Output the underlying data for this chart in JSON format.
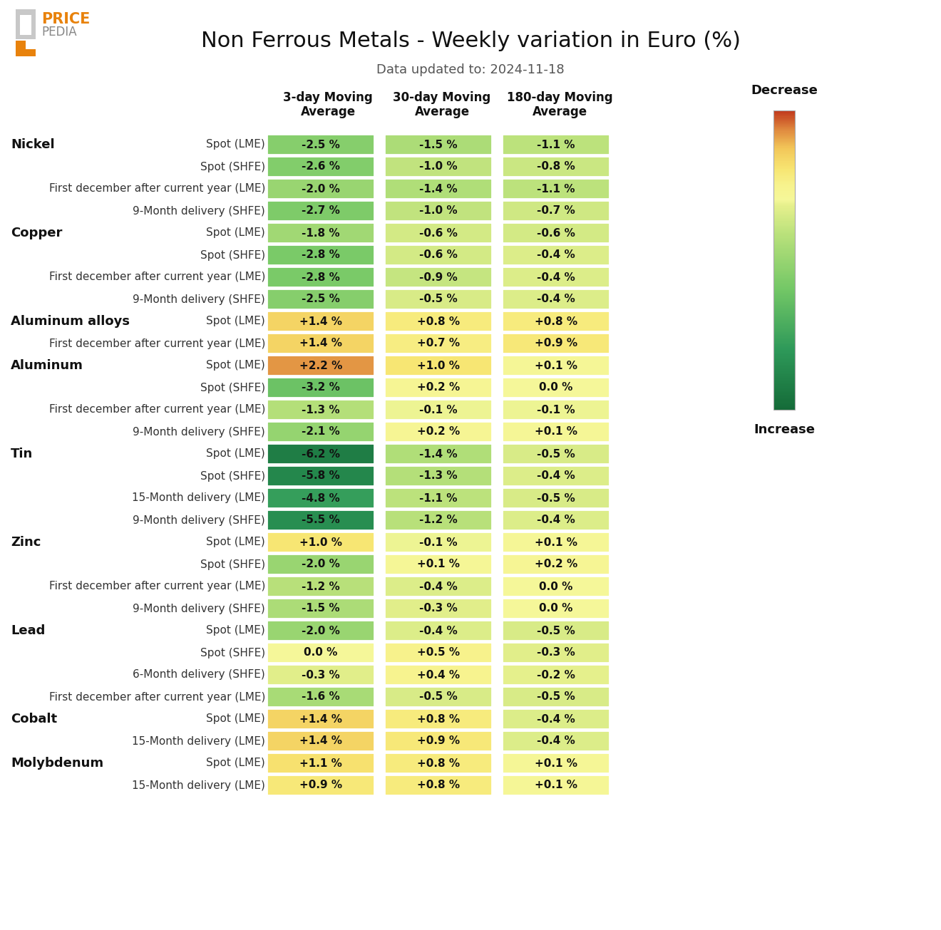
{
  "title": "Non Ferrous Metals - Weekly variation in Euro (%)",
  "subtitle": "Data updated to: 2024-11-18",
  "col_headers": [
    "3-day Moving\nAverage",
    "30-day Moving\nAverage",
    "180-day Moving\nAverage"
  ],
  "rows": [
    {
      "metal": "Nickel",
      "label": "Spot (LME)",
      "values": [
        -2.5,
        -1.5,
        -1.1
      ]
    },
    {
      "metal": "",
      "label": "Spot (SHFE)",
      "values": [
        -2.6,
        -1.0,
        -0.8
      ]
    },
    {
      "metal": "",
      "label": "First december after current year (LME)",
      "values": [
        -2.0,
        -1.4,
        -1.1
      ]
    },
    {
      "metal": "",
      "label": "9-Month delivery (SHFE)",
      "values": [
        -2.7,
        -1.0,
        -0.7
      ]
    },
    {
      "metal": "Copper",
      "label": "Spot (LME)",
      "values": [
        -1.8,
        -0.6,
        -0.6
      ]
    },
    {
      "metal": "",
      "label": "Spot (SHFE)",
      "values": [
        -2.8,
        -0.6,
        -0.4
      ]
    },
    {
      "metal": "",
      "label": "First december after current year (LME)",
      "values": [
        -2.8,
        -0.9,
        -0.4
      ]
    },
    {
      "metal": "",
      "label": "9-Month delivery (SHFE)",
      "values": [
        -2.5,
        -0.5,
        -0.4
      ]
    },
    {
      "metal": "Aluminum alloys",
      "label": "Spot (LME)",
      "values": [
        1.4,
        0.8,
        0.8
      ]
    },
    {
      "metal": "",
      "label": "First december after current year (LME)",
      "values": [
        1.4,
        0.7,
        0.9
      ]
    },
    {
      "metal": "Aluminum",
      "label": "Spot (LME)",
      "values": [
        2.2,
        1.0,
        0.1
      ]
    },
    {
      "metal": "",
      "label": "Spot (SHFE)",
      "values": [
        -3.2,
        0.2,
        0.0
      ]
    },
    {
      "metal": "",
      "label": "First december after current year (LME)",
      "values": [
        -1.3,
        -0.1,
        -0.1
      ]
    },
    {
      "metal": "",
      "label": "9-Month delivery (SHFE)",
      "values": [
        -2.1,
        0.2,
        0.1
      ]
    },
    {
      "metal": "Tin",
      "label": "Spot (LME)",
      "values": [
        -6.2,
        -1.4,
        -0.5
      ]
    },
    {
      "metal": "",
      "label": "Spot (SHFE)",
      "values": [
        -5.8,
        -1.3,
        -0.4
      ]
    },
    {
      "metal": "",
      "label": "15-Month delivery (LME)",
      "values": [
        -4.8,
        -1.1,
        -0.5
      ]
    },
    {
      "metal": "",
      "label": "9-Month delivery (SHFE)",
      "values": [
        -5.5,
        -1.2,
        -0.4
      ]
    },
    {
      "metal": "Zinc",
      "label": "Spot (LME)",
      "values": [
        1.0,
        -0.1,
        0.1
      ]
    },
    {
      "metal": "",
      "label": "Spot (SHFE)",
      "values": [
        -2.0,
        0.1,
        0.2
      ]
    },
    {
      "metal": "",
      "label": "First december after current year (LME)",
      "values": [
        -1.2,
        -0.4,
        0.0
      ]
    },
    {
      "metal": "",
      "label": "9-Month delivery (SHFE)",
      "values": [
        -1.5,
        -0.3,
        0.0
      ]
    },
    {
      "metal": "Lead",
      "label": "Spot (LME)",
      "values": [
        -2.0,
        -0.4,
        -0.5
      ]
    },
    {
      "metal": "",
      "label": "Spot (SHFE)",
      "values": [
        0.0,
        0.5,
        -0.3
      ]
    },
    {
      "metal": "",
      "label": "6-Month delivery (SHFE)",
      "values": [
        -0.3,
        0.4,
        -0.2
      ]
    },
    {
      "metal": "",
      "label": "First december after current year (LME)",
      "values": [
        -1.6,
        -0.5,
        -0.5
      ]
    },
    {
      "metal": "Cobalt",
      "label": "Spot (LME)",
      "values": [
        1.4,
        0.8,
        -0.4
      ]
    },
    {
      "metal": "",
      "label": "15-Month delivery (LME)",
      "values": [
        1.4,
        0.9,
        -0.4
      ]
    },
    {
      "metal": "Molybdenum",
      "label": "Spot (LME)",
      "values": [
        1.1,
        0.8,
        0.1
      ]
    },
    {
      "metal": "",
      "label": "15-Month delivery (LME)",
      "values": [
        0.9,
        0.8,
        0.1
      ]
    }
  ],
  "colorbar_label_top": "Decrease",
  "colorbar_label_bottom": "Increase",
  "background_color": "#ffffff",
  "vmin": -7.0,
  "vmax": 3.0,
  "colormap_keypoints": [
    [
      0.0,
      [
        0.08,
        0.42,
        0.22
      ]
    ],
    [
      0.2,
      [
        0.18,
        0.6,
        0.35
      ]
    ],
    [
      0.4,
      [
        0.45,
        0.78,
        0.4
      ]
    ],
    [
      0.58,
      [
        0.72,
        0.88,
        0.48
      ]
    ],
    [
      0.68,
      [
        0.9,
        0.94,
        0.55
      ]
    ],
    [
      0.7,
      [
        0.96,
        0.97,
        0.6
      ]
    ],
    [
      0.75,
      [
        0.97,
        0.95,
        0.55
      ]
    ],
    [
      0.8,
      [
        0.97,
        0.9,
        0.45
      ]
    ],
    [
      0.87,
      [
        0.95,
        0.78,
        0.35
      ]
    ],
    [
      0.93,
      [
        0.88,
        0.55,
        0.25
      ]
    ],
    [
      1.0,
      [
        0.75,
        0.2,
        0.1
      ]
    ]
  ],
  "title_fontsize": 22,
  "subtitle_fontsize": 13,
  "header_fontsize": 12,
  "label_fontsize": 11,
  "metal_fontsize": 13,
  "cell_fontsize": 11
}
